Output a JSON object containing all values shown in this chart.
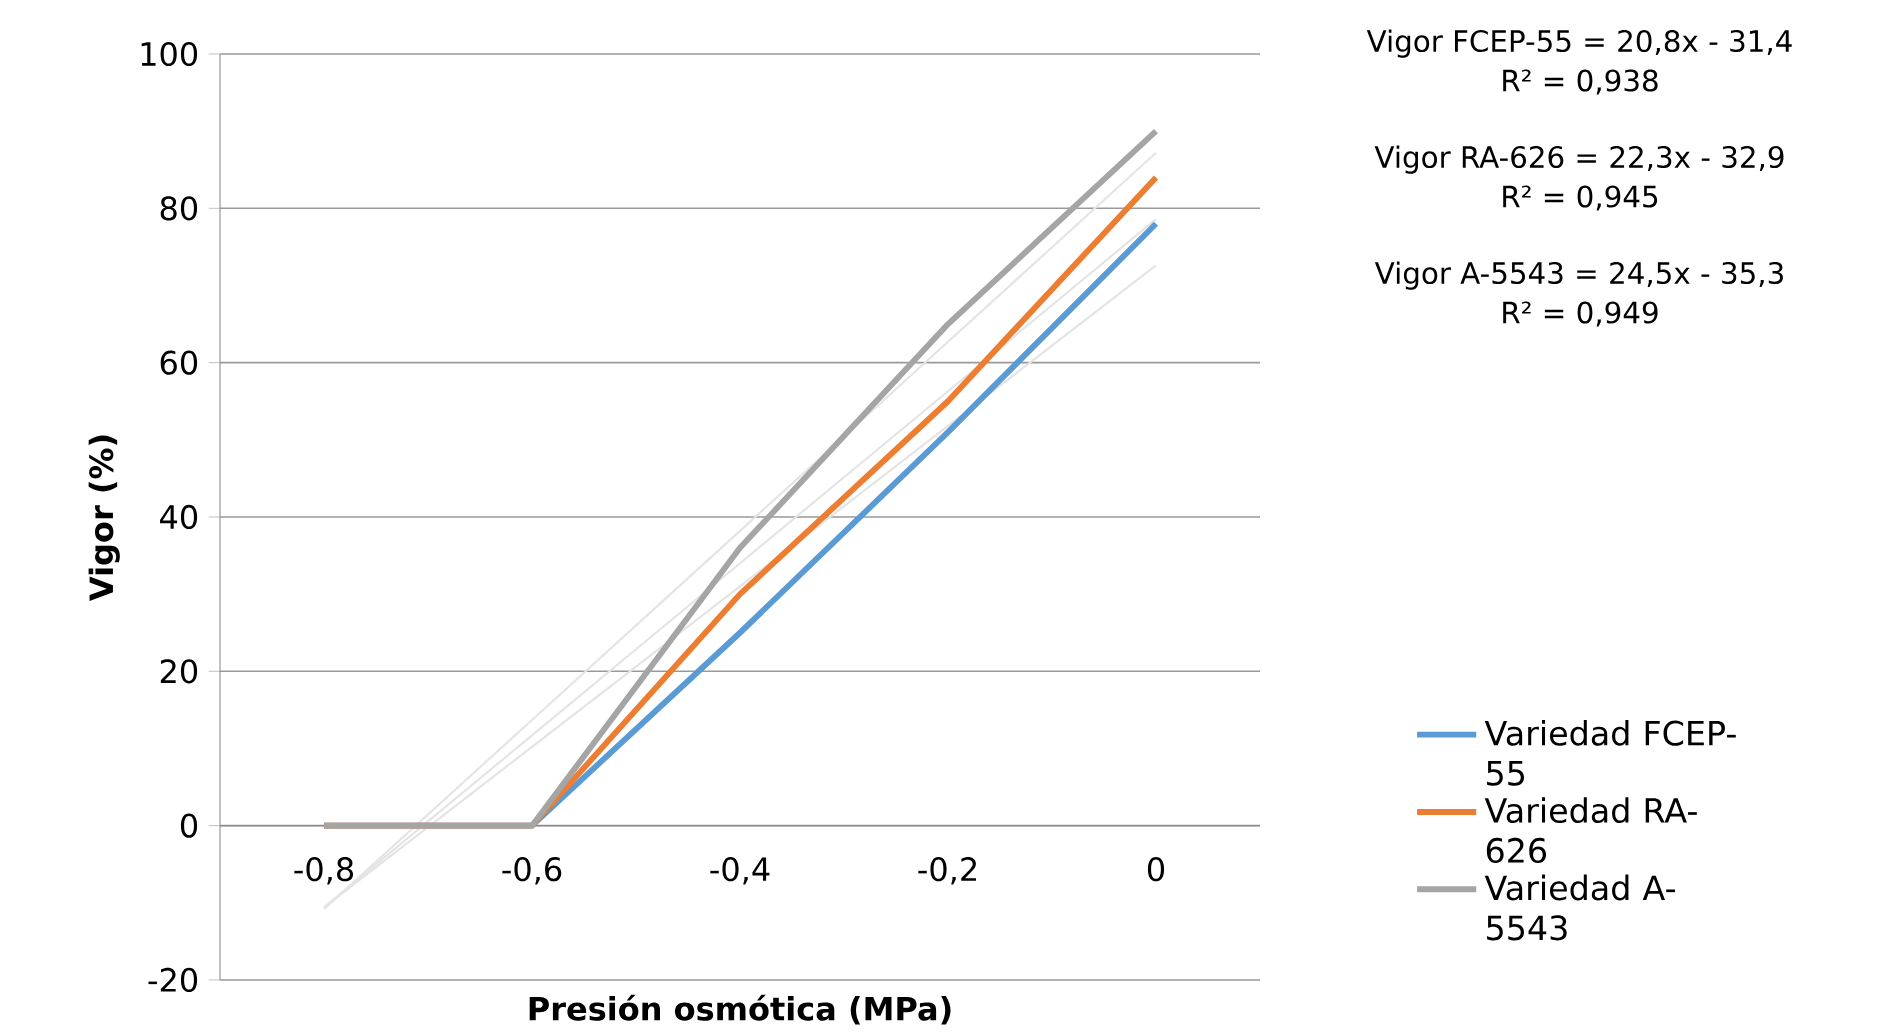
{
  "chart_data": {
    "type": "line",
    "xlabel": "Presión osmótica (MPa)",
    "ylabel": "Vigor (%)",
    "categories": [
      "-0,8",
      "-0,6",
      "-0,4",
      "-0,2",
      "0"
    ],
    "series": [
      {
        "name": "Variedad FCEP-55",
        "color": "#5b9bd5",
        "values": [
          0,
          0,
          25,
          51,
          78
        ]
      },
      {
        "name": "Variedad RA-626",
        "color": "#ed7d31",
        "values": [
          0,
          0,
          30,
          55,
          84
        ]
      },
      {
        "name": "Variedad A-5543",
        "color": "#a5a5a5",
        "values": [
          0,
          0,
          36,
          65,
          90
        ]
      },
      {
        "color": "#e4e4e4",
        "values": [
          -10.6,
          10.2,
          31.0,
          51.8,
          72.6
        ]
      },
      {
        "color": "#e4e4e4",
        "values": [
          -10.6,
          11.7,
          34.0,
          56.3,
          78.6
        ]
      },
      {
        "color": "#e4e4e4",
        "values": [
          -10.8,
          13.7,
          38.2,
          62.7,
          87.2
        ]
      }
    ],
    "ylim": [
      -20,
      100
    ],
    "yticks": [
      -20,
      0,
      20,
      40,
      60,
      80,
      100
    ],
    "grid": "y",
    "legend": "right",
    "marker": "none",
    "line_style": "solid",
    "annotations": [
      "Vigor FCEP-55 = 20,8x - 31,4",
      "R² = 0,938",
      "Vigor RA-626 = 22,3x - 32,9",
      "R² = 0,945",
      "Vigor A-5543 = 24,5x - 35,3",
      "R² = 0,949"
    ]
  }
}
